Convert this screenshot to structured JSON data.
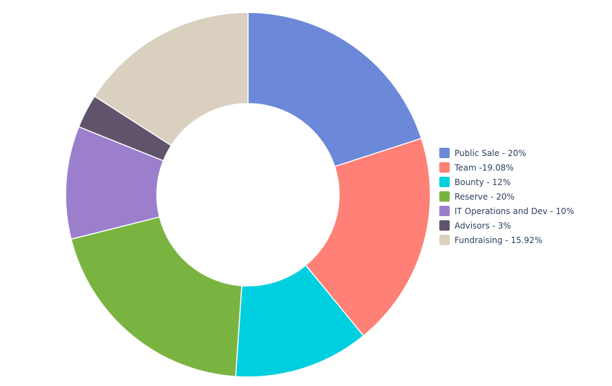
{
  "chart_data": {
    "type": "pie",
    "hole": true,
    "title": "",
    "slices": [
      {
        "label": "Public Sale",
        "legend": "Public Sale - 20%",
        "value": 20,
        "color": "#6c88d8"
      },
      {
        "label": "Team",
        "legend": "Team -19.08%",
        "value": 19.08,
        "color": "#fe8076"
      },
      {
        "label": "Bounty",
        "legend": "Bounty - 12%",
        "value": 12,
        "color": "#00cfdf"
      },
      {
        "label": "Reserve",
        "legend": "Reserve - 20%",
        "value": 20,
        "color": "#7ab440"
      },
      {
        "label": "IT Operations and Dev",
        "legend": "IT Operations and Dev - 10%",
        "value": 10,
        "color": "#9b7fcc"
      },
      {
        "label": "Advisors",
        "legend": "Advisors - 3%",
        "value": 3,
        "color": "#5f546b"
      },
      {
        "label": "Fundraising",
        "legend": "Fundraising - 15.92%",
        "value": 15.92,
        "color": "#d9d0c0"
      }
    ],
    "legend_position": "right"
  }
}
